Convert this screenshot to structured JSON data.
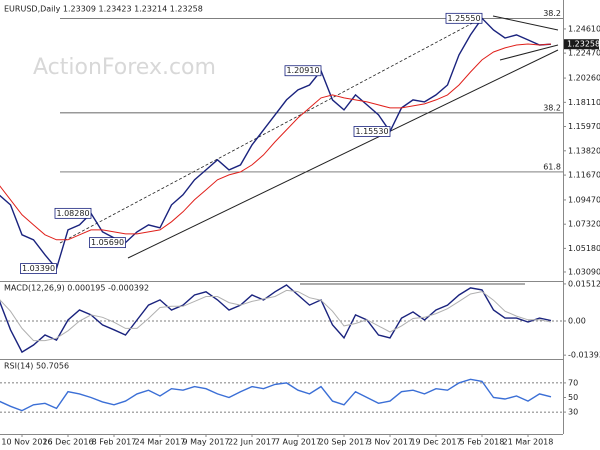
{
  "chart_data": [
    {
      "type": "line",
      "title": "EURUSD,Daily  1.23309 1.23423 1.23214 1.23258",
      "watermark": "ActionForex.com",
      "categories": [
        null,
        null,
        "10 Nov 2016",
        null,
        null,
        null,
        "26 Dec 2016",
        null,
        null,
        null,
        "8 Feb 2017",
        null,
        null,
        null,
        "24 Mar 2017",
        null,
        null,
        null,
        "9 May 2017",
        null,
        null,
        null,
        "22 Jun 2017",
        null,
        null,
        null,
        "7 Aug 2017",
        null,
        null,
        null,
        "20 Sep 2017",
        null,
        null,
        null,
        "3 Nov 2017",
        null,
        null,
        null,
        "19 Dec 2017",
        null,
        null,
        null,
        "5 Feb 2018",
        null,
        null,
        null,
        "21 Mar 2018",
        null,
        null
      ],
      "series": [
        {
          "color": "#1a237e",
          "values": [
            1.0992,
            1.0903,
            1.0638,
            1.0594,
            1.0461,
            1.0339,
            1.0682,
            1.0726,
            1.0828,
            1.0664,
            1.0611,
            1.0569,
            1.0664,
            1.0726,
            1.07,
            1.0903,
            1.0992,
            1.1125,
            1.1213,
            1.1302,
            1.1213,
            1.1257,
            1.1434,
            1.1567,
            1.17,
            1.1833,
            1.1921,
            1.1965,
            1.2091,
            1.1833,
            1.1744,
            1.1877,
            1.1788,
            1.17,
            1.1553,
            1.1762,
            1.1833,
            1.1815,
            1.1877,
            1.1965,
            1.2231,
            1.2408,
            1.2555,
            1.2452,
            1.2381,
            1.2408,
            1.2364,
            1.2319,
            1.2326
          ]
        },
        {
          "color": "#e0201b",
          "values": [
            1.108,
            1.0948,
            1.0815,
            1.0726,
            1.0638,
            1.0594,
            1.0594,
            1.0638,
            1.0682,
            1.0682,
            1.0664,
            1.0646,
            1.0646,
            1.0664,
            1.0682,
            1.0753,
            1.0842,
            1.0948,
            1.1036,
            1.1125,
            1.1169,
            1.1195,
            1.1257,
            1.1346,
            1.1461,
            1.1567,
            1.1673,
            1.1762,
            1.185,
            1.1877,
            1.185,
            1.1833,
            1.1815,
            1.1788,
            1.1762,
            1.1762,
            1.178,
            1.1797,
            1.1833,
            1.1877,
            1.1965,
            1.208,
            1.2187,
            1.2257,
            1.2293,
            1.2319,
            1.2328,
            1.2319,
            1.2328
          ]
        }
      ],
      "ylim": [
        1.0238,
        1.2673
      ],
      "yticks": [
        {
          "value": 1.2461,
          "label": "1.24610"
        },
        {
          "value": 1.2247,
          "label": "1.22470"
        },
        {
          "value": 1.2026,
          "label": "1.20260"
        },
        {
          "value": 1.1811,
          "label": "1.18110"
        },
        {
          "value": 1.1597,
          "label": "1.15970"
        },
        {
          "value": 1.1382,
          "label": "1.13820"
        },
        {
          "value": 1.1167,
          "label": "1.11670"
        },
        {
          "value": 1.0947,
          "label": "1.09470"
        },
        {
          "value": 1.0732,
          "label": "1.07320"
        },
        {
          "value": 1.0518,
          "label": "1.05180"
        },
        {
          "value": 1.0309,
          "label": "1.03090"
        }
      ],
      "last_price": 1.23258,
      "fib_levels": [
        {
          "price": 1.2555,
          "ratio": 38.2
        },
        {
          "price": 1.1718,
          "ratio": 38.2
        },
        {
          "price": 1.1195,
          "ratio": 61.8
        }
      ],
      "annotations": [
        {
          "index": 42,
          "value": 1.2555,
          "label": "1.25550"
        },
        {
          "index": 28,
          "value": 1.2091,
          "label": "1.20910"
        },
        {
          "index": 34,
          "value": 1.1553,
          "label": "1.15530"
        },
        {
          "index": 8,
          "value": 1.0828,
          "label": "1.08280"
        },
        {
          "index": 11,
          "value": 1.0569,
          "label": "1.05690"
        },
        {
          "index": 5,
          "value": 1.0339,
          "label": "1.03390"
        }
      ]
    },
    {
      "type": "line",
      "title": "MACD(12,26,9) 0.000195 -0.000392",
      "series": [
        {
          "color": "#1a237e",
          "values": [
            0.0086,
            -0.0036,
            -0.0127,
            -0.0098,
            -0.0057,
            -0.0078,
            0.0004,
            0.0045,
            0.0025,
            -0.0016,
            -0.0036,
            -0.0057,
            0.0004,
            0.0065,
            0.0086,
            0.0045,
            0.0065,
            0.0106,
            0.0119,
            0.0086,
            0.0045,
            0.0065,
            0.0106,
            0.0086,
            0.0119,
            0.0147,
            0.0106,
            0.0065,
            0.0086,
            -0.0016,
            -0.0069,
            0.0025,
            0.0004,
            -0.0057,
            -0.0069,
            0.0012,
            0.0037,
            0.0004,
            0.0045,
            0.0065,
            0.0106,
            0.0135,
            0.0127,
            0.0045,
            0.0012,
            0.0012,
            -0.0004,
            0.0012,
            0.0002
          ]
        },
        {
          "color": "#b0b0b0",
          "values": [
            0.009,
            0.004,
            -0.003,
            -0.008,
            -0.008,
            -0.007,
            -0.004,
            0,
            0.0025,
            0.0015,
            -0.0005,
            -0.003,
            -0.003,
            0.001,
            0.0055,
            0.006,
            0.006,
            0.008,
            0.01,
            0.01,
            0.0075,
            0.0065,
            0.008,
            0.009,
            0.01,
            0.0125,
            0.012,
            0.0095,
            0.0085,
            0.004,
            -0.002,
            -0.001,
            0.0005,
            -0.002,
            -0.0045,
            -0.002,
            0.001,
            0.0015,
            0.003,
            0.005,
            0.008,
            0.011,
            0.012,
            0.0085,
            0.004,
            0.002,
            0.0005,
            0.0005,
            -0.0004
          ]
        }
      ],
      "ylim": [
        -0.0155,
        0.0155
      ],
      "yticks": [
        0.01512,
        {
          "value": 0,
          "label": "0.00"
        },
        -0.01393
      ],
      "levels": [
        0
      ]
    },
    {
      "type": "line",
      "title": "RSI(14) 50.7056",
      "series": [
        {
          "color": "#3b6fd6",
          "values": [
            45,
            38,
            32,
            40,
            42,
            35,
            58,
            55,
            50,
            44,
            40,
            45,
            55,
            60,
            52,
            62,
            60,
            65,
            62,
            55,
            50,
            58,
            65,
            62,
            68,
            70,
            60,
            55,
            65,
            45,
            40,
            58,
            50,
            42,
            45,
            58,
            60,
            55,
            62,
            60,
            70,
            75,
            72,
            50,
            48,
            52,
            45,
            55,
            51
          ]
        }
      ],
      "ylim": [
        0,
        100
      ],
      "yticks": [
        70,
        50,
        30
      ],
      "levels": [
        70,
        30
      ]
    }
  ]
}
